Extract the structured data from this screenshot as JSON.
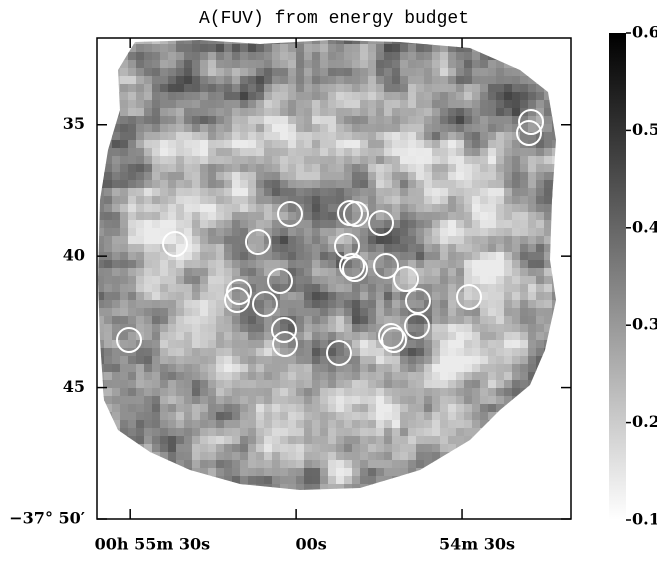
{
  "chart_data": {
    "type": "image",
    "title": "A(FUV) from energy budget",
    "xlim": [
      3336,
      3250.3
    ],
    "xticks": [
      {
        "value": 3330,
        "label": "00h 55m 30s"
      },
      {
        "value": 3300,
        "label": "00s"
      },
      {
        "value": 3270,
        "label": "54m 30s"
      }
    ],
    "ylim": [
      31.7,
      50
    ],
    "yticks": [
      35,
      40,
      45,
      {
        "value": 50,
        "label": "−37° 50′"
      }
    ],
    "colorbar_lim": [
      0.1,
      0.6
    ],
    "colorbar_ticks": [
      0.1,
      0.2,
      0.3,
      0.4,
      0.5,
      0.6
    ]
  }
}
